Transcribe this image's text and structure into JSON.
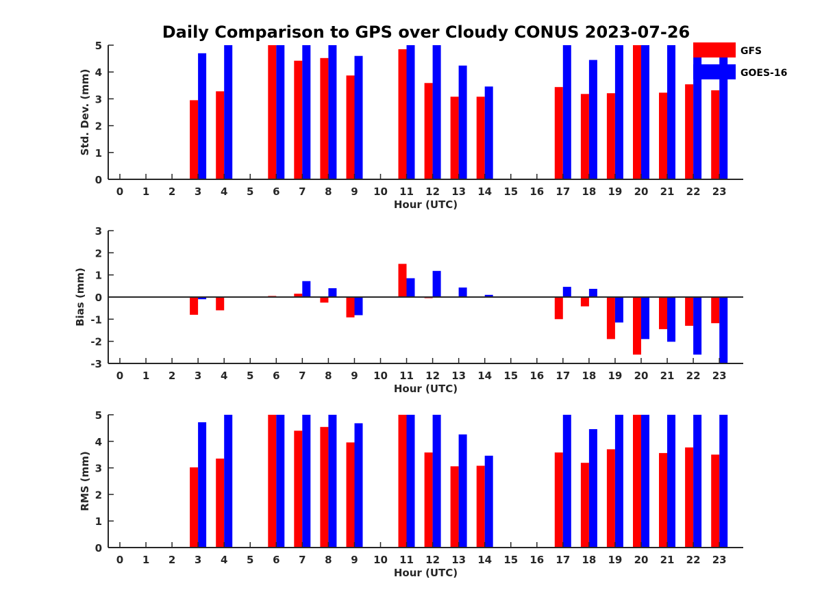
{
  "title": "Daily Comparison to GPS over Cloudy CONUS 2023-07-26",
  "colors": {
    "GFS": "#ff0000",
    "GOES-16": "#0000ff",
    "axis": "#262626"
  },
  "legend": {
    "placement": "top-right",
    "entries": [
      "GFS",
      "GOES-16"
    ]
  },
  "chart_data": [
    {
      "type": "bar",
      "ylabel": "Std. Dev. (mm)",
      "xlabel": "Hour (UTC)",
      "ylim": [
        0,
        5
      ],
      "yticks": [
        0,
        1,
        2,
        3,
        4,
        5
      ],
      "categories": [
        0,
        1,
        2,
        3,
        4,
        5,
        6,
        7,
        8,
        9,
        10,
        11,
        12,
        13,
        14,
        15,
        16,
        17,
        18,
        19,
        20,
        21,
        22,
        23
      ],
      "series": [
        {
          "name": "GFS",
          "values": [
            null,
            null,
            null,
            2.95,
            3.28,
            null,
            5.0,
            4.42,
            4.52,
            3.87,
            null,
            4.85,
            3.59,
            3.08,
            3.08,
            null,
            null,
            3.44,
            3.18,
            3.21,
            5.0,
            3.23,
            3.54,
            3.32
          ]
        },
        {
          "name": "GOES-16",
          "values": [
            null,
            null,
            null,
            4.7,
            5.0,
            null,
            5.0,
            5.0,
            5.0,
            4.6,
            null,
            5.0,
            5.0,
            4.24,
            3.46,
            null,
            null,
            5.0,
            4.45,
            5.0,
            5.0,
            5.0,
            5.0,
            5.0
          ]
        }
      ]
    },
    {
      "type": "bar",
      "ylabel": "Bias (mm)",
      "xlabel": "Hour (UTC)",
      "ylim": [
        -3,
        3
      ],
      "yticks": [
        -3,
        -2,
        -1,
        0,
        1,
        2,
        3
      ],
      "zero_line": true,
      "categories": [
        0,
        1,
        2,
        3,
        4,
        5,
        6,
        7,
        8,
        9,
        10,
        11,
        12,
        13,
        14,
        15,
        16,
        17,
        18,
        19,
        20,
        21,
        22,
        23
      ],
      "series": [
        {
          "name": "GFS",
          "values": [
            null,
            null,
            null,
            -0.8,
            -0.6,
            null,
            0.05,
            0.15,
            -0.25,
            -0.92,
            null,
            1.5,
            -0.05,
            0.0,
            0.02,
            null,
            null,
            -1.0,
            -0.42,
            -1.9,
            -2.6,
            -1.45,
            -1.3,
            -1.18
          ]
        },
        {
          "name": "GOES-16",
          "values": [
            null,
            null,
            null,
            -0.1,
            0.0,
            null,
            0.0,
            0.72,
            0.4,
            -0.82,
            null,
            0.85,
            1.18,
            0.43,
            0.1,
            null,
            null,
            0.46,
            0.37,
            -1.15,
            -1.9,
            -2.02,
            -2.6,
            -3.0
          ]
        }
      ]
    },
    {
      "type": "bar",
      "ylabel": "RMS (mm)",
      "xlabel": "Hour (UTC)",
      "ylim": [
        0,
        5
      ],
      "yticks": [
        0,
        1,
        2,
        3,
        4,
        5
      ],
      "categories": [
        0,
        1,
        2,
        3,
        4,
        5,
        6,
        7,
        8,
        9,
        10,
        11,
        12,
        13,
        14,
        15,
        16,
        17,
        18,
        19,
        20,
        21,
        22,
        23
      ],
      "series": [
        {
          "name": "GFS",
          "values": [
            null,
            null,
            null,
            3.02,
            3.35,
            null,
            5.0,
            4.4,
            4.54,
            3.96,
            null,
            5.0,
            3.58,
            3.06,
            3.08,
            null,
            null,
            3.58,
            3.19,
            3.7,
            5.0,
            3.56,
            3.77,
            3.5
          ]
        },
        {
          "name": "GOES-16",
          "values": [
            null,
            null,
            null,
            4.72,
            5.0,
            null,
            5.0,
            5.0,
            5.0,
            4.68,
            null,
            5.0,
            5.0,
            4.26,
            3.46,
            null,
            null,
            5.0,
            4.46,
            5.0,
            5.0,
            5.0,
            5.0,
            5.0
          ]
        }
      ]
    }
  ]
}
